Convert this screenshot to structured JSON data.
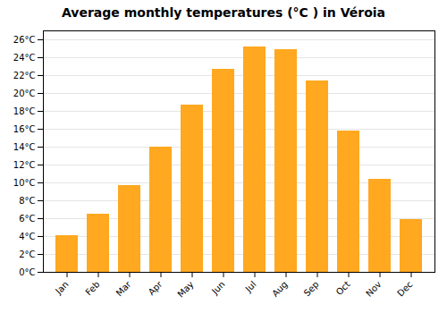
{
  "chart_data": {
    "type": "bar",
    "title": "Average monthly temperatures (°C ) in Véroia",
    "categories": [
      "Jan",
      "Feb",
      "Mar",
      "Apr",
      "May",
      "Jun",
      "Jul",
      "Aug",
      "Sep",
      "Oct",
      "Nov",
      "Dec"
    ],
    "values": [
      4.1,
      6.5,
      9.7,
      14.0,
      18.7,
      22.7,
      25.2,
      24.9,
      21.4,
      15.8,
      10.4,
      5.9
    ],
    "color": "#FFA820",
    "ylim": [
      0,
      27
    ],
    "yticks": [
      {
        "value": 0,
        "label": "0°C"
      },
      {
        "value": 2,
        "label": "2°C"
      },
      {
        "value": 4,
        "label": "4°C"
      },
      {
        "value": 6,
        "label": "6°C"
      },
      {
        "value": 8,
        "label": "8°C"
      },
      {
        "value": 10,
        "label": "10°C"
      },
      {
        "value": 12,
        "label": "12°C"
      },
      {
        "value": 14,
        "label": "14°C"
      },
      {
        "value": 16,
        "label": "16°C"
      },
      {
        "value": 18,
        "label": "18°C"
      },
      {
        "value": 20,
        "label": "20°C"
      },
      {
        "value": 22,
        "label": "22°C"
      },
      {
        "value": 24,
        "label": "24°C"
      },
      {
        "value": 26,
        "label": "26°C"
      }
    ],
    "grid": true
  }
}
